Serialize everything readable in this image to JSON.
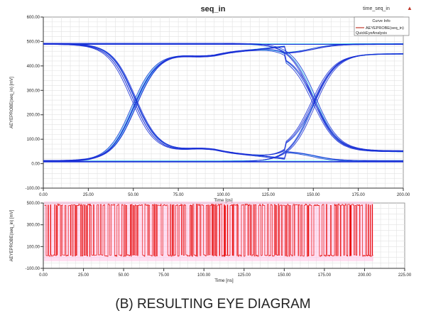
{
  "chart_data": [
    {
      "type": "line",
      "title": "seq_in",
      "corner_label": "time_seq_in",
      "xlabel": "Time [ps]",
      "ylabel": "AEYEPROBE(seq_in) [mV]",
      "xlim": [
        0,
        200
      ],
      "ylim": [
        -100,
        600
      ],
      "xticks": [
        "0.00",
        "25.00",
        "50.00",
        "75.00",
        "100.00",
        "125.00",
        "150.00",
        "175.00",
        "200.00"
      ],
      "yticks": [
        "600.00",
        "500.00",
        "400.00",
        "300.00",
        "200.00",
        "100.00",
        "0.00",
        "-100.00"
      ],
      "grid": true,
      "legend": {
        "title": "Curve Info",
        "entries": [
          "AEYEPROBE(seq_in)"
        ],
        "subtitle": "QuickEyeAnalysis",
        "placement": "top-right"
      },
      "eye": {
        "unit_interval_ps": 100,
        "high_mV": 490,
        "low_mV": 10,
        "crossing_mV": 250,
        "crossings_ps": [
          50,
          150
        ]
      },
      "colors": {
        "trace": "#1a2fd6",
        "highlight": "#27e0e8",
        "legend_line": "#c0392b"
      }
    },
    {
      "type": "line",
      "xlabel": "Time [ns]",
      "ylabel": "AEYEPROBE(seq_in) [mV]",
      "xlim": [
        0,
        225
      ],
      "ylim": [
        -100,
        500
      ],
      "xticks": [
        "0.00",
        "25.00",
        "50.00",
        "75.00",
        "100.00",
        "125.00",
        "150.00",
        "175.00",
        "200.00",
        "225.00"
      ],
      "yticks": [
        "500.00",
        "300.00",
        "100.00",
        "-100.00"
      ],
      "grid": true,
      "data_range_ns": [
        0,
        205
      ],
      "levels_mV": [
        10,
        490
      ],
      "colors": {
        "trace": "#e81010",
        "band": "#ffc8e8"
      }
    }
  ],
  "caption": "(B) RESULTING EYE DIAGRAM"
}
